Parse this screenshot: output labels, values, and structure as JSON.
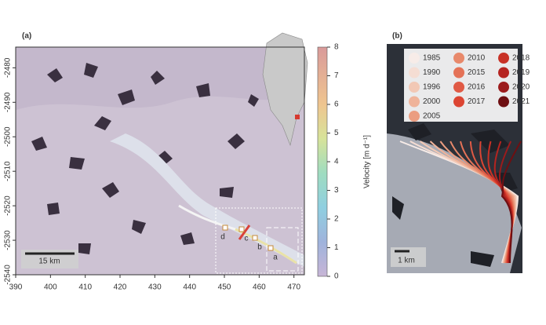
{
  "panel_a": {
    "label": "(a)",
    "xlim": [
      390,
      473
    ],
    "xticks": [
      390,
      400,
      410,
      420,
      430,
      440,
      450,
      460,
      470
    ],
    "ylim": [
      -2540,
      -2474
    ],
    "yticks": [
      -2480,
      -2490,
      -2500,
      -2510,
      -2520,
      -2530,
      -2540
    ],
    "scale_label": "15 km",
    "point_labels": [
      "a",
      "b",
      "c",
      "d"
    ],
    "colorbar": {
      "label": "Velocity [m d⁻¹]",
      "lim": [
        0,
        8
      ],
      "ticks": [
        0,
        1,
        2,
        3,
        4,
        5,
        6,
        7,
        8
      ]
    }
  },
  "panel_b": {
    "label": "(b)",
    "scale_label": "1 km",
    "legend": [
      {
        "year": "1985",
        "color": "#f7ece8"
      },
      {
        "year": "1990",
        "color": "#f5ddd3"
      },
      {
        "year": "1996",
        "color": "#f2c8b5"
      },
      {
        "year": "2000",
        "color": "#efb39a"
      },
      {
        "year": "2005",
        "color": "#eb9d80"
      },
      {
        "year": "2010",
        "color": "#e8896b"
      },
      {
        "year": "2015",
        "color": "#e47257"
      },
      {
        "year": "2016",
        "color": "#e05a45"
      },
      {
        "year": "2017",
        "color": "#dc4533"
      },
      {
        "year": "2018",
        "color": "#c83126"
      },
      {
        "year": "2019",
        "color": "#b52420"
      },
      {
        "year": "2020",
        "color": "#9c1b1c"
      },
      {
        "year": "2021",
        "color": "#6e0f12"
      }
    ]
  }
}
